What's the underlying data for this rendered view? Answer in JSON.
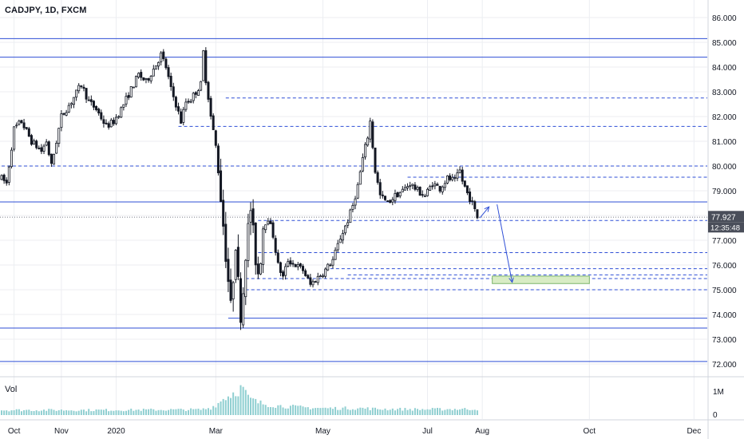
{
  "chart_data": {
    "type": "candlestick",
    "title": "CADJPY, 1D, FXCM",
    "symbol": "CADJPY",
    "interval": "1D",
    "exchange": "FXCM",
    "price_axis": {
      "min": 72.0,
      "max": 86.0,
      "ticks": [
        "86.000",
        "85.000",
        "84.000",
        "83.000",
        "82.000",
        "81.000",
        "80.000",
        "79.000",
        "78.000",
        "77.000",
        "76.000",
        "75.000",
        "74.000",
        "73.000",
        "72.000"
      ]
    },
    "current_price": "77.927",
    "countdown": "12:35:48",
    "time_axis": {
      "labels": [
        {
          "label": "Oct",
          "bar": 5
        },
        {
          "label": "Nov",
          "bar": 24
        },
        {
          "label": "2020",
          "bar": 46
        },
        {
          "label": "Mar",
          "bar": 86
        },
        {
          "label": "May",
          "bar": 129
        },
        {
          "label": "Jul",
          "bar": 171
        },
        {
          "label": "Aug",
          "bar": 193
        },
        {
          "label": "Oct",
          "bar": 236
        },
        {
          "label": "Dec",
          "bar": 278
        }
      ]
    },
    "price_path": [
      [
        0,
        79.5
      ],
      [
        2,
        79.3
      ],
      [
        5,
        81.5
      ],
      [
        8,
        81.8
      ],
      [
        12,
        81.0
      ],
      [
        16,
        80.6
      ],
      [
        18,
        81.0
      ],
      [
        20,
        80.0
      ],
      [
        24,
        82.0
      ],
      [
        28,
        82.6
      ],
      [
        32,
        83.3
      ],
      [
        35,
        82.6
      ],
      [
        38,
        82.3
      ],
      [
        42,
        81.6
      ],
      [
        45,
        81.8
      ],
      [
        48,
        82.3
      ],
      [
        52,
        83.1
      ],
      [
        55,
        83.7
      ],
      [
        58,
        83.4
      ],
      [
        62,
        84.1
      ],
      [
        64,
        84.5
      ],
      [
        66,
        84.0
      ],
      [
        68,
        83.1
      ],
      [
        70,
        82.5
      ],
      [
        72,
        81.8
      ],
      [
        74,
        82.6
      ],
      [
        76,
        82.7
      ],
      [
        78,
        83.0
      ],
      [
        80,
        83.3
      ],
      [
        81,
        84.6
      ],
      [
        82,
        83.5
      ],
      [
        83,
        82.8
      ],
      [
        84,
        82.0
      ],
      [
        86,
        80.8
      ],
      [
        88,
        78.8
      ],
      [
        90,
        76.5
      ],
      [
        91,
        75.4
      ],
      [
        92,
        74.2
      ],
      [
        93,
        75.6
      ],
      [
        94,
        77.0
      ],
      [
        95,
        75.2
      ],
      [
        96,
        74.1
      ],
      [
        97,
        75.0
      ],
      [
        98,
        76.6
      ],
      [
        99,
        77.4
      ],
      [
        100,
        78.3
      ],
      [
        101,
        77.2
      ],
      [
        102,
        76.3
      ],
      [
        103,
        75.7
      ],
      [
        104,
        76.4
      ],
      [
        105,
        77.6
      ],
      [
        107,
        77.9
      ],
      [
        109,
        77.2
      ],
      [
        111,
        76.0
      ],
      [
        113,
        75.5
      ],
      [
        115,
        76.2
      ],
      [
        118,
        76.0
      ],
      [
        121,
        75.8
      ],
      [
        124,
        75.2
      ],
      [
        127,
        75.5
      ],
      [
        130,
        75.8
      ],
      [
        133,
        76.2
      ],
      [
        136,
        77.1
      ],
      [
        139,
        77.8
      ],
      [
        141,
        78.4
      ],
      [
        143,
        79.2
      ],
      [
        145,
        80.3
      ],
      [
        147,
        81.2
      ],
      [
        148,
        81.8
      ],
      [
        149,
        80.8
      ],
      [
        150,
        79.8
      ],
      [
        152,
        78.8
      ],
      [
        155,
        78.5
      ],
      [
        158,
        78.8
      ],
      [
        161,
        79.0
      ],
      [
        164,
        79.3
      ],
      [
        167,
        79.0
      ],
      [
        170,
        78.8
      ],
      [
        173,
        79.3
      ],
      [
        176,
        79.1
      ],
      [
        179,
        79.5
      ],
      [
        182,
        79.4
      ],
      [
        184,
        79.8
      ],
      [
        185,
        79.4
      ],
      [
        187,
        78.9
      ],
      [
        189,
        78.5
      ],
      [
        190,
        78.2
      ],
      [
        191,
        77.93
      ]
    ],
    "volume": {
      "label": "Vol",
      "axis_ticks": [
        "1M",
        "0"
      ],
      "path": [
        [
          0,
          0.22
        ],
        [
          40,
          0.22
        ],
        [
          80,
          0.24
        ],
        [
          84,
          0.32
        ],
        [
          86,
          0.45
        ],
        [
          88,
          0.6
        ],
        [
          89,
          0.75
        ],
        [
          90,
          0.8
        ],
        [
          91,
          0.82
        ],
        [
          92,
          0.9
        ],
        [
          93,
          0.98
        ],
        [
          94,
          1.05
        ],
        [
          95,
          1.1
        ],
        [
          96,
          1.15
        ],
        [
          97,
          1.2
        ],
        [
          98,
          0.95
        ],
        [
          99,
          0.75
        ],
        [
          101,
          0.65
        ],
        [
          103,
          0.55
        ],
        [
          106,
          0.48
        ],
        [
          110,
          0.42
        ],
        [
          115,
          0.38
        ],
        [
          120,
          0.34
        ],
        [
          130,
          0.3
        ],
        [
          145,
          0.3
        ],
        [
          150,
          0.27
        ],
        [
          170,
          0.25
        ],
        [
          191,
          0.27
        ]
      ]
    },
    "horizontal_levels": [
      {
        "price": 85.15,
        "style": "solid",
        "to_axis": true
      },
      {
        "price": 84.4,
        "style": "solid",
        "to_axis": true
      },
      {
        "price": 82.75,
        "style": "dashed",
        "from_bar": 90
      },
      {
        "price": 81.6,
        "style": "dashed",
        "from_bar": 71
      },
      {
        "price": 80.0,
        "style": "dashed",
        "from_bar": 0
      },
      {
        "price": 79.55,
        "style": "dashed",
        "from_bar": 163
      },
      {
        "price": 78.55,
        "style": "solid",
        "to_axis": true
      },
      {
        "price": 77.93,
        "style": "dotted-gray",
        "to_axis": true
      },
      {
        "price": 77.8,
        "style": "dashed",
        "from_bar": 103
      },
      {
        "price": 76.5,
        "style": "dashed",
        "from_bar": 103
      },
      {
        "price": 75.85,
        "style": "dashed",
        "from_bar": 132
      },
      {
        "price": 75.6,
        "style": "dashed",
        "from_bar": 139
      },
      {
        "price": 75.45,
        "style": "dashed",
        "from_bar": 98
      },
      {
        "price": 75.0,
        "style": "dashed",
        "from_bar": 98
      },
      {
        "price": 73.85,
        "style": "solid",
        "from_bar": 91
      },
      {
        "price": 73.45,
        "style": "solid",
        "to_axis": true
      },
      {
        "price": 72.1,
        "style": "solid",
        "to_axis": true
      }
    ],
    "projection": [
      {
        "bar": 192,
        "price": 77.9
      },
      {
        "bar": 197,
        "price": 78.45
      },
      {
        "bar": 205,
        "price": 75.3
      }
    ],
    "target_zone": {
      "bar_start": 197,
      "bar_end": 236,
      "price_top": 75.55,
      "price_bottom": 75.25
    },
    "grid": true
  },
  "colors": {
    "candle": "#131722",
    "level": "#2f4fd6",
    "zone_fill": "#d8ecc4",
    "zone_border": "#7cb56a",
    "volume": "#8fcfd1",
    "grid": "#eceef2",
    "axis_text": "#131722",
    "price_label_bg": "#4a4e5a"
  }
}
